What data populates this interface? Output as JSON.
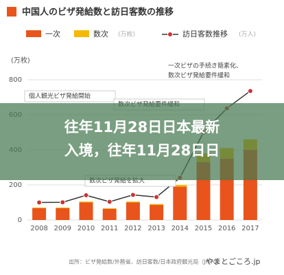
{
  "chart_data": {
    "type": "bar",
    "title": "中国人のビザ発給数と訪日客数の推移",
    "categories": [
      "2008",
      "2009",
      "2010",
      "2011",
      "2012",
      "2013",
      "2014",
      "2015",
      "2016",
      "2017"
    ],
    "series": [
      {
        "name": "一次",
        "color": "#e8541c",
        "values": [
          68,
          68,
          100,
          64,
          100,
          86,
          190,
          330,
          350,
          400
        ]
      },
      {
        "name": "数次",
        "color": "#f5b800",
        "values": [
          3,
          3,
          5,
          3,
          5,
          5,
          10,
          50,
          60,
          60
        ]
      },
      {
        "name": "訪日客数推移",
        "type": "line",
        "color": "#333333",
        "values": [
          100,
          101,
          141,
          104,
          143,
          131,
          241,
          499,
          637,
          736
        ]
      }
    ],
    "legend_units": [
      "(万枚)",
      "(万人)"
    ],
    "ylabel": "(万枚)",
    "ylim": [
      0,
      800
    ],
    "yticks": [
      0,
      200,
      400,
      600,
      800
    ],
    "grid": true,
    "annotations": [
      "一次ビザの手続き簡素化、",
      "数次ビザ発給要件緩和",
      "個人観光ビザ発給開始",
      "数次ビザ発給要件緩和",
      "数次ビザ発給を拡大"
    ]
  },
  "overlay_title": [
    "往年11月28日日本最新",
    "入境，往年11月28日日"
  ],
  "source": "出所：ビザ発給数/外務省、訪日客数/日本政府観光局（JNTO）",
  "logo": "やまとごころ.jp"
}
